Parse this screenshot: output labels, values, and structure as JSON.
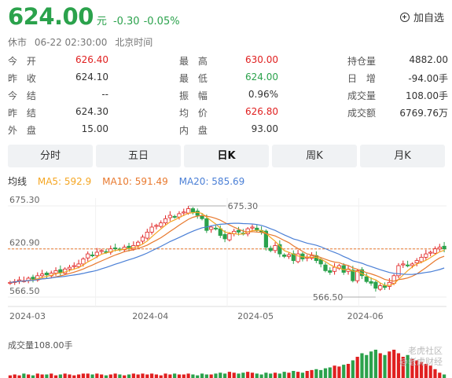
{
  "header": {
    "price": "624.00",
    "unit": "元",
    "change": "-0.30",
    "change_pct": "-0.05%",
    "watch_label": "加自选"
  },
  "status": {
    "state": "休市",
    "time": "06-22 02:30:00",
    "tz": "北京时间"
  },
  "quotes": [
    [
      {
        "label": "今 开",
        "value": "626.40",
        "color": "red"
      },
      {
        "label": "最 高",
        "value": "630.00",
        "color": "red"
      },
      {
        "label": "持仓量",
        "value": "4882.00",
        "color": "black"
      }
    ],
    [
      {
        "label": "昨 收",
        "value": "624.10",
        "color": "black"
      },
      {
        "label": "最 低",
        "value": "624.00",
        "color": "green"
      },
      {
        "label": "日 增",
        "value": "-94.00手",
        "color": "black"
      }
    ],
    [
      {
        "label": "今 结",
        "value": "--",
        "color": "black"
      },
      {
        "label": "振 幅",
        "value": "0.96%",
        "color": "black"
      },
      {
        "label": "成交量",
        "value": "108.00手",
        "color": "black"
      }
    ],
    [
      {
        "label": "昨 结",
        "value": "624.30",
        "color": "black"
      },
      {
        "label": "均 价",
        "value": "626.80",
        "color": "red"
      },
      {
        "label": "成交额",
        "value": "6769.76万",
        "color": "black"
      }
    ],
    [
      {
        "label": "外 盘",
        "value": "15.00",
        "color": "black"
      },
      {
        "label": "内 盘",
        "value": "93.00",
        "color": "black"
      }
    ]
  ],
  "tabs": [
    "分时",
    "五日",
    "日K",
    "周K",
    "月K"
  ],
  "active_tab": "日K",
  "ma": {
    "label": "均线",
    "ma5": "MA5: 592.9",
    "ma10": "MA10: 591.49",
    "ma20": "MA20: 585.69"
  },
  "colors": {
    "up": "#e02020",
    "down": "#2ba24c",
    "ma5": "#f5a623",
    "ma10": "#e8792e",
    "ma20": "#4a7fd6"
  },
  "chart_data": {
    "type": "candlestick",
    "y_ticks": [
      "675.30",
      "620.90",
      "566.50"
    ],
    "x_ticks": [
      "2024-03",
      "2024-04",
      "2024-05",
      "2024-06"
    ],
    "annotations": {
      "high": "675.30",
      "low": "566.50"
    },
    "ylim": [
      566.5,
      675.3
    ],
    "current_price_line": 624.0,
    "close": [
      584,
      585,
      587,
      586,
      589,
      588,
      592,
      594,
      593,
      595,
      598,
      596,
      600,
      602,
      604,
      606,
      612,
      618,
      616,
      620,
      622,
      620,
      624,
      625,
      623,
      626,
      625,
      628,
      632,
      638,
      644,
      650,
      652,
      655,
      660,
      664,
      662,
      666,
      668,
      672,
      668,
      664,
      660,
      646,
      650,
      648,
      640,
      636,
      642,
      645,
      644,
      642,
      648,
      650,
      646,
      644,
      626,
      622,
      628,
      618,
      615,
      617,
      610,
      618,
      612,
      614,
      616,
      610,
      606,
      598,
      596,
      602,
      604,
      596,
      600,
      586,
      598,
      592,
      585,
      583,
      577,
      580,
      578,
      584,
      592,
      604,
      606,
      604,
      606,
      610,
      614,
      618,
      620,
      624,
      626,
      624
    ],
    "volume": [
      3,
      4,
      3,
      5,
      4,
      3,
      5,
      4,
      4,
      5,
      3,
      4,
      5,
      4,
      3,
      4,
      5,
      5,
      4,
      5,
      4,
      3,
      4,
      5,
      4,
      3,
      4,
      5,
      4,
      5,
      4,
      5,
      4,
      3,
      5,
      4,
      5,
      4,
      4,
      5,
      4,
      3,
      5,
      4,
      4,
      5,
      6,
      5,
      7,
      6,
      5,
      6,
      7,
      6,
      5,
      4,
      6,
      5,
      6,
      5,
      7,
      6,
      8,
      7,
      6,
      8,
      9,
      10,
      9,
      11,
      12,
      14,
      13,
      15,
      16,
      20,
      24,
      28,
      26,
      30,
      32,
      28,
      26,
      30,
      32,
      28,
      24,
      26,
      22,
      20,
      18,
      16,
      14,
      10,
      6,
      4
    ]
  },
  "volume_label": "成交量108.00手",
  "watermark": {
    "line1": "老虎社区",
    "line2": "@老虎财经"
  }
}
